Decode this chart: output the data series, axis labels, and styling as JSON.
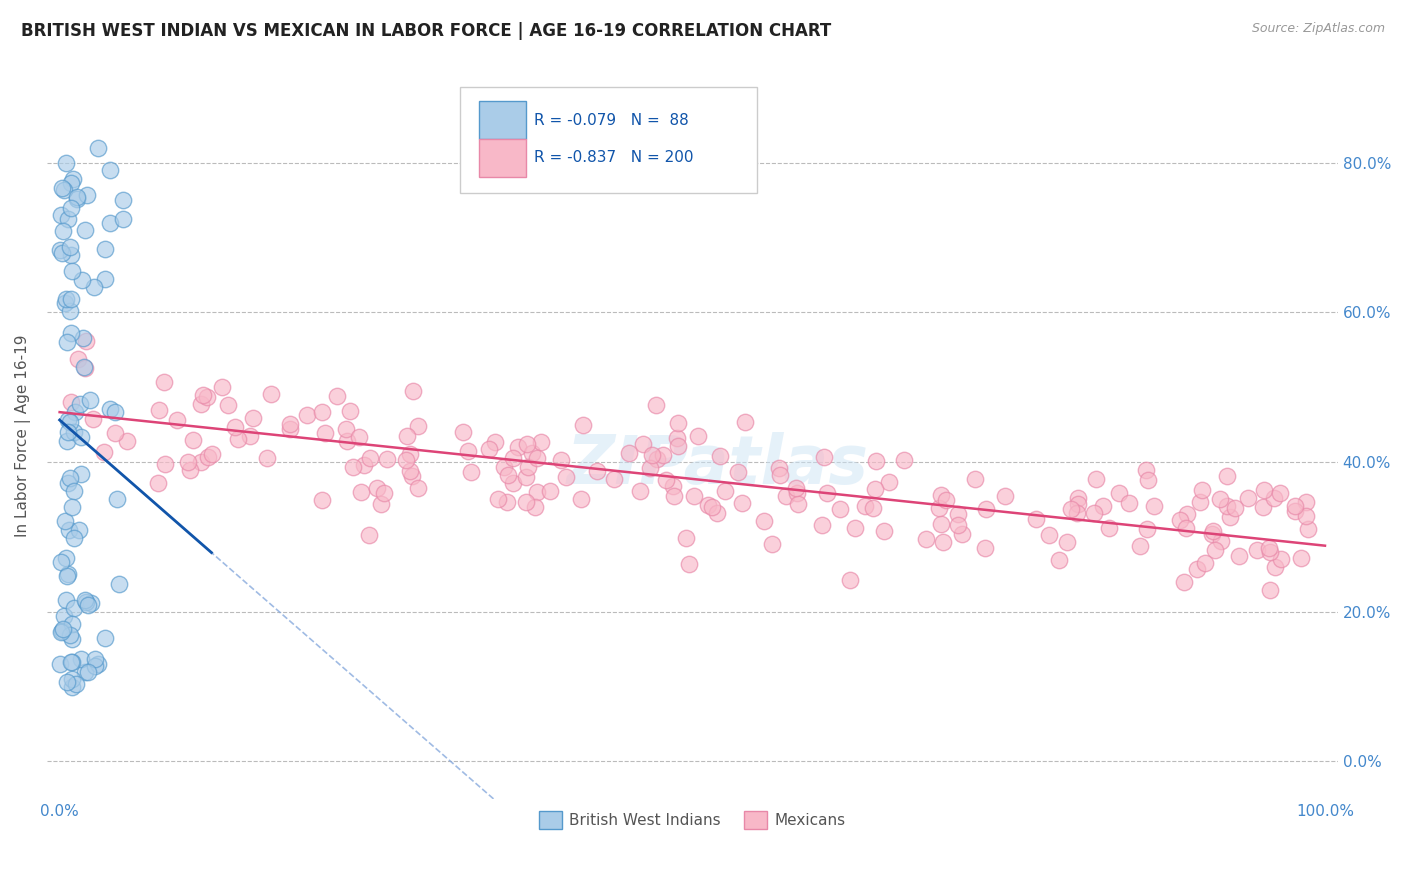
{
  "title": "BRITISH WEST INDIAN VS MEXICAN IN LABOR FORCE | AGE 16-19 CORRELATION CHART",
  "source_text": "Source: ZipAtlas.com",
  "ylabel": "In Labor Force | Age 16-19",
  "xlim": [
    -0.01,
    1.01
  ],
  "ylim": [
    -0.05,
    0.92
  ],
  "x_ticks": [
    0.0,
    1.0
  ],
  "x_tick_labels": [
    "0.0%",
    "100.0%"
  ],
  "y_ticks": [
    0.0,
    0.2,
    0.4,
    0.6,
    0.8
  ],
  "y_tick_labels_right": [
    "0.0%",
    "20.0%",
    "40.0%",
    "60.0%",
    "80.0%"
  ],
  "grid_color": "#bbbbbb",
  "grid_linestyle": "--",
  "watermark": "ZIPatlas",
  "legend_labels": [
    "British West Indians",
    "Mexicans"
  ],
  "R_blue": -0.079,
  "N_blue": 88,
  "R_pink": -0.837,
  "N_pink": 200,
  "blue_dot_fill": "#aacce8",
  "blue_dot_edge": "#5599cc",
  "pink_dot_fill": "#f8b8c8",
  "pink_dot_edge": "#e888a8",
  "blue_line_color": "#1155aa",
  "pink_line_color": "#dd4477",
  "blue_dash_color": "#88aadd",
  "tick_color": "#4488cc",
  "background_color": "#ffffff",
  "title_fontsize": 12,
  "axis_label_fontsize": 11,
  "tick_fontsize": 11,
  "legend_fontsize": 11,
  "seed": 7
}
